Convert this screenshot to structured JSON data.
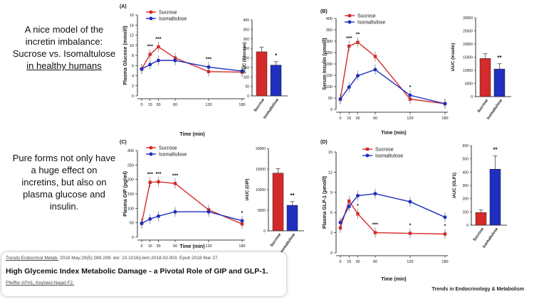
{
  "side_text_1": {
    "line1": "A nice model of the",
    "line2": "incretin imbalance:",
    "line3": "Sucrose vs. Isomaltulose",
    "line4": "in healthy humans"
  },
  "side_text_2": {
    "line1": "Pure forms not only have",
    "line2": "a huge effect on",
    "line3": "incretins, but also on",
    "line4": "plasma glucose and",
    "line5": "insulin."
  },
  "citation": {
    "journal": "Trends Endocrinol Metab.",
    "details": " 2018 May;29(5):289-299. doi: 10.1016/j.tem.2018.03.003. Epub 2018 Mar 27.",
    "title": "High Glycemic Index Metabolic Damage - a Pivotal Role of GIP and GLP-1.",
    "authors": "Pfeiffer AFH1, Keyhani-Nejad F2."
  },
  "footer": "Trends in Endocrinology & Metabolism",
  "colors": {
    "sucrose": "#d42a2a",
    "isomaltulose": "#1f2fbf"
  },
  "chart_data": [
    {
      "panel": "(A)",
      "type": "line",
      "ylabel": "Plasma Glucose (mmol/l)",
      "xlabel": "Time (min)",
      "xlim": [
        0,
        180
      ],
      "ylim": [
        0,
        16
      ],
      "xticks": [
        0,
        15,
        30,
        60,
        120,
        180
      ],
      "yticks": [
        0,
        2,
        4,
        6,
        8,
        10,
        12,
        14,
        16
      ],
      "x": [
        0,
        15,
        30,
        60,
        120,
        180
      ],
      "series": [
        {
          "name": "Sucrose",
          "values": [
            5.3,
            8.2,
            9.7,
            7.5,
            4.8,
            4.7
          ]
        },
        {
          "name": "Isomaltulose",
          "values": [
            5.3,
            6.2,
            7.0,
            7.0,
            5.7,
            4.9
          ]
        }
      ],
      "annotations": [
        {
          "x": 15,
          "y": 8.2,
          "text": "***"
        },
        {
          "x": 30,
          "y": 9.7,
          "text": "***"
        },
        {
          "x": 120,
          "y": 5.7,
          "text": "***"
        }
      ],
      "legend": "top-left"
    },
    {
      "panel": "A-iAUC",
      "type": "bar",
      "ylabel": "iAUC (Glucose)",
      "ylim": [
        0,
        400
      ],
      "yticks": [
        0,
        50,
        100,
        150,
        200,
        250,
        300,
        350,
        400
      ],
      "categories": [
        "Sucrose",
        "Isomaltulose"
      ],
      "values": [
        232,
        162
      ],
      "errors": [
        25,
        18
      ],
      "annotation": "*"
    },
    {
      "panel": "(B)",
      "type": "line",
      "ylabel": "Serum Insulin (pmol/l)",
      "xlabel": "Time (min)",
      "xlim": [
        0,
        180
      ],
      "ylim": [
        0,
        400
      ],
      "xticks": [
        0,
        15,
        30,
        60,
        120,
        180
      ],
      "yticks": [
        0,
        50,
        100,
        150,
        200,
        250,
        300,
        350,
        400
      ],
      "x": [
        0,
        15,
        30,
        60,
        120,
        180
      ],
      "series": [
        {
          "name": "Sucrose",
          "values": [
            45,
            278,
            295,
            233,
            45,
            25
          ]
        },
        {
          "name": "Isomaltulose",
          "values": [
            45,
            98,
            148,
            175,
            62,
            25
          ]
        }
      ],
      "annotations": [
        {
          "x": 15,
          "y": 278,
          "text": "***"
        },
        {
          "x": 30,
          "y": 295,
          "text": "**"
        },
        {
          "x": 120,
          "y": 62,
          "text": "*"
        }
      ],
      "legend": "top-left"
    },
    {
      "panel": "B-iAUC",
      "type": "bar",
      "ylabel": "iAUC (Insulin)",
      "ylim": [
        0,
        30000
      ],
      "yticks": [
        0,
        5000,
        10000,
        15000,
        20000,
        25000,
        30000
      ],
      "categories": [
        "Sucrose",
        "Isomaltulose"
      ],
      "values": [
        14500,
        10500
      ],
      "errors": [
        1800,
        2000
      ],
      "annotation": "**"
    },
    {
      "panel": "(C)",
      "type": "line",
      "ylabel": "Plasma GIP (pg/ml)",
      "xlabel": "Time (min)",
      "xlim": [
        0,
        180
      ],
      "ylim": [
        0,
        300
      ],
      "xticks": [
        0,
        15,
        30,
        60,
        120,
        180
      ],
      "yticks": [
        0,
        50,
        100,
        150,
        200,
        250,
        300
      ],
      "x": [
        0,
        15,
        30,
        60,
        120,
        180
      ],
      "series": [
        {
          "name": "Sucrose",
          "values": [
            48,
            190,
            192,
            186,
            95,
            46
          ]
        },
        {
          "name": "Isomaltulose",
          "values": [
            48,
            63,
            73,
            88,
            88,
            57
          ]
        }
      ],
      "annotations": [
        {
          "x": 15,
          "y": 190,
          "text": "***"
        },
        {
          "x": 30,
          "y": 192,
          "text": "***"
        },
        {
          "x": 60,
          "y": 186,
          "text": "***"
        },
        {
          "x": 180,
          "y": 57,
          "text": "*"
        }
      ],
      "legend": "top-left"
    },
    {
      "panel": "C-iAUC",
      "type": "bar",
      "ylabel": "iAUC (GIP)",
      "ylim": [
        0,
        20000
      ],
      "yticks": [
        0,
        5000,
        10000,
        15000,
        20000
      ],
      "categories": [
        "Sucrose",
        "Isomaltulose"
      ],
      "values": [
        14000,
        6200
      ],
      "errors": [
        1100,
        900
      ],
      "annotation": "**"
    },
    {
      "panel": "(D)",
      "type": "line",
      "ylabel": "Plasma GLP-1 (pmol/l)",
      "xlabel": "Time (min)",
      "xlim": [
        0,
        180
      ],
      "ylim": [
        0,
        15
      ],
      "xticks": [
        0,
        15,
        30,
        60,
        120,
        180
      ],
      "yticks": [
        0,
        3,
        6,
        9,
        12,
        15
      ],
      "x": [
        0,
        15,
        30,
        60,
        120,
        180
      ],
      "series": [
        {
          "name": "Sucrose",
          "values": [
            3.7,
            7.7,
            5.8,
            3.0,
            2.9,
            2.8
          ]
        },
        {
          "name": "Isomaltulose",
          "values": [
            4.5,
            6.9,
            8.5,
            8.8,
            7.6,
            5.3
          ]
        }
      ],
      "annotations": [
        {
          "x": 30,
          "y": 5.8,
          "text": "*"
        },
        {
          "x": 60,
          "y": 3.0,
          "text": "***"
        },
        {
          "x": 120,
          "y": 2.9,
          "text": "*"
        },
        {
          "x": 180,
          "y": 2.8,
          "text": "*"
        }
      ],
      "legend": "top-right"
    },
    {
      "panel": "D-iAUC",
      "type": "bar",
      "ylabel": "iAUC (GLP1)",
      "ylim": [
        0,
        600
      ],
      "yticks": [
        0,
        100,
        200,
        300,
        400,
        500,
        600
      ],
      "categories": [
        "Sucrose",
        "Isomaltulose"
      ],
      "values": [
        95,
        422
      ],
      "errors": [
        20,
        100
      ],
      "annotation": "**"
    }
  ]
}
